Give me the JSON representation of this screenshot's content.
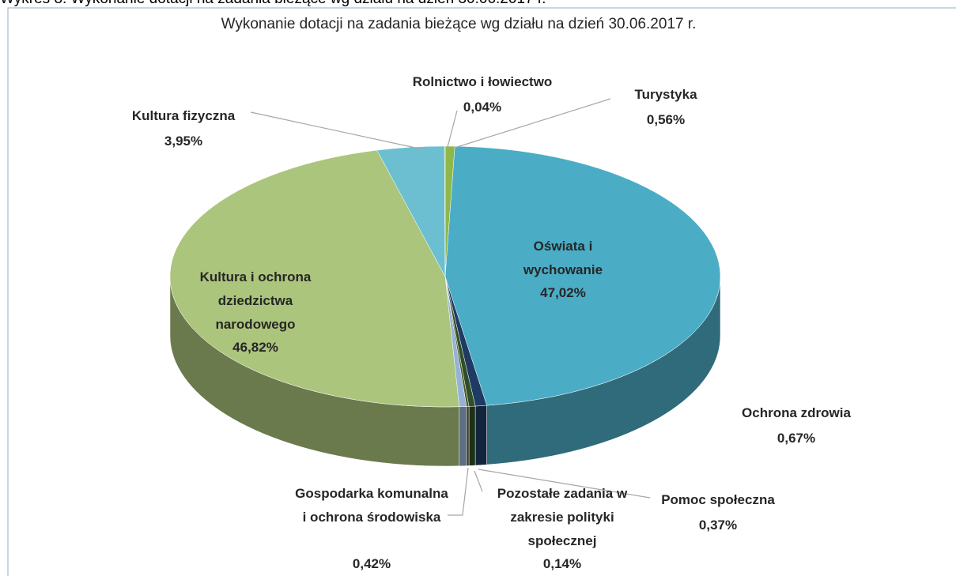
{
  "caption": "Wykres 8. Wykonanie dotacji na zadania bieżące wg działu na dzień 30.06.2017 r.",
  "chart_data": {
    "type": "pie3d",
    "title": "Wykonanie dotacji na zadania bieżące wg działu na dzień 30.06.2017 r.",
    "categories": [
      "Turystyka",
      "Oświata i wychowanie",
      "Ochrona zdrowia",
      "Pomoc społeczna",
      "Pozostałe zadania w zakresie polityki społecznej",
      "Gospodarka komunalna i ochrona środowiska",
      "Kultura i ochrona dziedzictwa narodowego",
      "Kultura fizyczna",
      "Rolnictwo i łowiectwo"
    ],
    "values": [
      0.56,
      47.02,
      0.67,
      0.37,
      0.14,
      0.42,
      46.82,
      3.95,
      0.04
    ],
    "value_labels": [
      "0,56%",
      "47,02%",
      "0,67%",
      "0,37%",
      "0,14%",
      "0,42%",
      "46,82%",
      "3,95%",
      "0,04%"
    ],
    "colors": [
      "#8fb84a",
      "#4bacc6",
      "#1f3b63",
      "#2f4f2a",
      "#4f5a23",
      "#95b3d7",
      "#abc57c",
      "#6bbfd1",
      "#7aa23a"
    ]
  }
}
